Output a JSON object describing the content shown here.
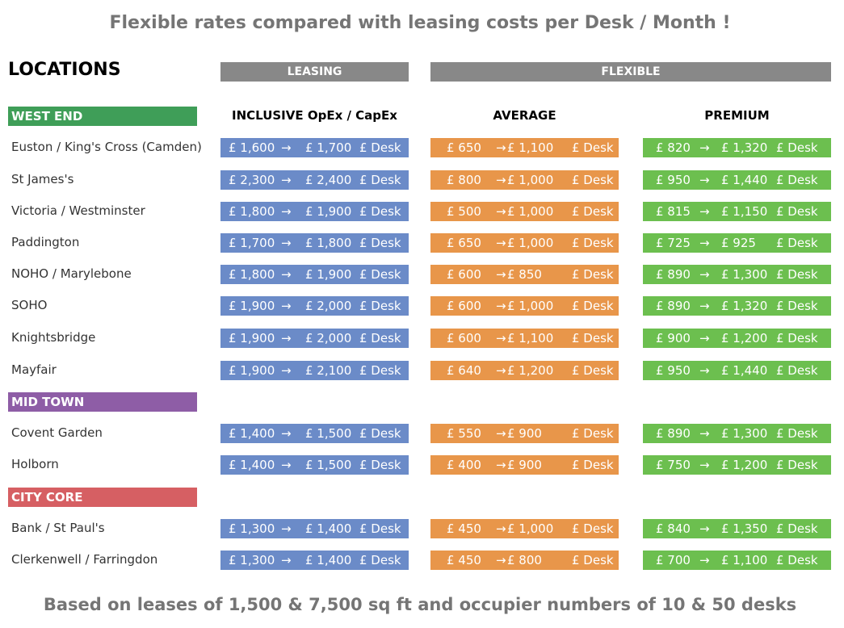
{
  "title": "Flexible rates compared with leasing costs per Desk / Month !",
  "footer": "Based on leases of 1,500 & 7,500 sq ft and occupier numbers of 10 & 50 desks",
  "locations_heading": "LOCATIONS",
  "headers": {
    "leasing": "LEASING",
    "flexible": "FLEXIBLE"
  },
  "columns": {
    "leasing": "INCLUSIVE OpEx / CapEx",
    "average": "AVERAGE",
    "premium": "PREMIUM"
  },
  "arrow": "→",
  "unit": "£ Desk",
  "colors": {
    "west_end": "#3f9e58",
    "mid_town": "#8e5da6",
    "city_core": "#d65f63",
    "leasing": "#6b8bc8",
    "average": "#e8964a",
    "premium": "#6cbf4f",
    "header": "#888888"
  },
  "regions": [
    {
      "name": "WEST END",
      "rows": [
        {
          "location": "Euston / King's Cross (Camden)",
          "leasing": [
            "£ 1,600",
            "£ 1,700"
          ],
          "average": [
            "£ 650",
            "£ 1,100"
          ],
          "premium": [
            "£ 820",
            "£ 1,320"
          ]
        },
        {
          "location": "St James's",
          "leasing": [
            "£ 2,300",
            "£ 2,400"
          ],
          "average": [
            "£ 800",
            "£ 1,000"
          ],
          "premium": [
            "£ 950",
            "£ 1,440"
          ]
        },
        {
          "location": "Victoria / Westminster",
          "leasing": [
            "£ 1,800",
            "£ 1,900"
          ],
          "average": [
            "£ 500",
            "£ 1,000"
          ],
          "premium": [
            "£ 815",
            "£ 1,150"
          ]
        },
        {
          "location": "Paddington",
          "leasing": [
            "£ 1,700",
            "£ 1,800"
          ],
          "average": [
            "£ 650",
            "£ 1,000"
          ],
          "premium": [
            "£ 725",
            "£ 925"
          ]
        },
        {
          "location": "NOHO / Marylebone",
          "leasing": [
            "£ 1,800",
            "£ 1,900"
          ],
          "average": [
            "£ 600",
            "£ 850"
          ],
          "premium": [
            "£ 890",
            "£ 1,300"
          ]
        },
        {
          "location": "SOHO",
          "leasing": [
            "£ 1,900",
            "£ 2,000"
          ],
          "average": [
            "£ 600",
            "£ 1,000"
          ],
          "premium": [
            "£ 890",
            "£ 1,320"
          ]
        },
        {
          "location": "Knightsbridge",
          "leasing": [
            "£ 1,900",
            "£ 2,000"
          ],
          "average": [
            "£ 600",
            "£ 1,100"
          ],
          "premium": [
            "£ 900",
            "£ 1,200"
          ]
        },
        {
          "location": "Mayfair",
          "leasing": [
            "£ 1,900",
            "£ 2,100"
          ],
          "average": [
            "£ 640",
            "£ 1,200"
          ],
          "premium": [
            "£ 950",
            "£ 1,440"
          ]
        }
      ]
    },
    {
      "name": "MID TOWN",
      "rows": [
        {
          "location": "Covent Garden",
          "leasing": [
            "£ 1,400",
            "£ 1,500"
          ],
          "average": [
            "£ 550",
            "£ 900"
          ],
          "premium": [
            "£ 890",
            "£ 1,300"
          ]
        },
        {
          "location": "Holborn",
          "leasing": [
            "£ 1,400",
            "£ 1,500"
          ],
          "average": [
            "£ 400",
            "£ 900"
          ],
          "premium": [
            "£ 750",
            "£ 1,200"
          ]
        }
      ]
    },
    {
      "name": "CITY CORE",
      "rows": [
        {
          "location": "Bank / St Paul's",
          "leasing": [
            "£ 1,300",
            "£ 1,400"
          ],
          "average": [
            "£ 450",
            "£ 1,000"
          ],
          "premium": [
            "£ 840",
            "£ 1,350"
          ]
        },
        {
          "location": "Clerkenwell / Farringdon",
          "leasing": [
            "£ 1,300",
            "£ 1,400"
          ],
          "average": [
            "£ 450",
            "£ 800"
          ],
          "premium": [
            "£ 700",
            "£ 1,100"
          ]
        }
      ]
    }
  ]
}
